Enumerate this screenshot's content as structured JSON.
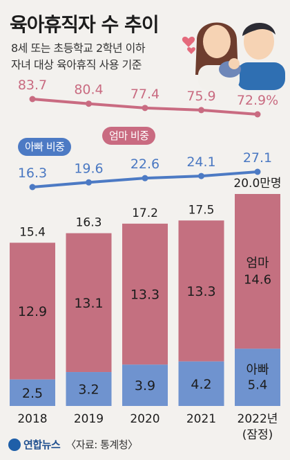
{
  "title": "육아휴직자 수 추이",
  "subtitle_lines": [
    "8세 또는 초등학교 2학년 이하",
    "자녀 대상 육아휴직 사용 기준"
  ],
  "colors": {
    "mom": "#c47080",
    "dad": "#6f93cf",
    "mom_line": "#c96b81",
    "dad_line": "#4c7ac4",
    "mom_text": "#c96b81",
    "dad_text": "#4a78c2"
  },
  "chart_data": {
    "type": "bar",
    "categories": [
      "2018",
      "2019",
      "2020",
      "2021",
      "2022년"
    ],
    "category_note": "(잠정)",
    "totals": [
      15.4,
      16.3,
      17.2,
      17.5,
      20.0
    ],
    "total_last_label": "20.0만명",
    "series": [
      {
        "name": "아빠",
        "values": [
          2.5,
          3.2,
          3.9,
          4.2,
          5.4
        ]
      },
      {
        "name": "엄마",
        "values": [
          12.9,
          13.1,
          13.3,
          13.3,
          14.6
        ]
      }
    ],
    "ylim": [
      0,
      20.0
    ],
    "share": {
      "type": "line",
      "series": [
        {
          "name": "엄마 비중",
          "values": [
            83.7,
            80.4,
            77.4,
            75.9,
            72.9
          ],
          "last_label": "72.9%"
        },
        {
          "name": "아빠 비중",
          "values": [
            16.3,
            19.6,
            22.6,
            24.1,
            27.1
          ]
        }
      ]
    }
  },
  "legend": {
    "mom": "엄마 비중",
    "dad": "아빠 비중"
  },
  "footer": {
    "logo": "연합뉴스",
    "source": "〈자료: 통계청〉"
  }
}
